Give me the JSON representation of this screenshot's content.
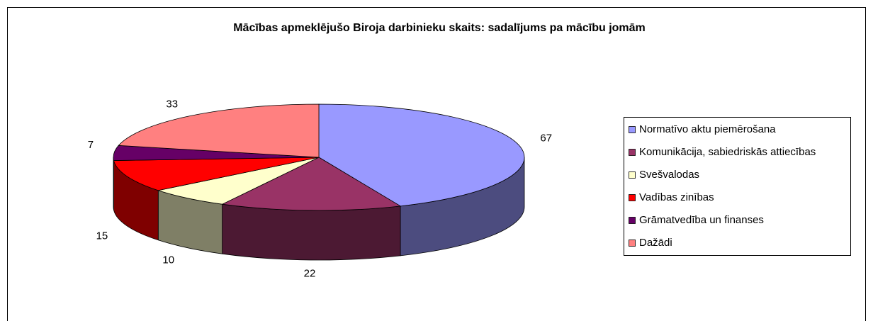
{
  "chart_data": {
    "type": "pie",
    "title": "Mācības apmeklējušo Biroja darbinieku skaits: sadalījums pa mācību jomām",
    "categories": [
      "Normatīvo aktu piemērošana",
      "Komunikācija, sabiedriskās attiecības",
      "Svešvalodas",
      "Vadības zinības",
      "Grāmatvedība un finanses",
      "Dažādi"
    ],
    "values": [
      67,
      22,
      10,
      15,
      7,
      33
    ],
    "colors": [
      "#9999ff",
      "#993366",
      "#ffffcc",
      "#ff0000",
      "#660066",
      "#ff8080"
    ],
    "legend": "right"
  }
}
